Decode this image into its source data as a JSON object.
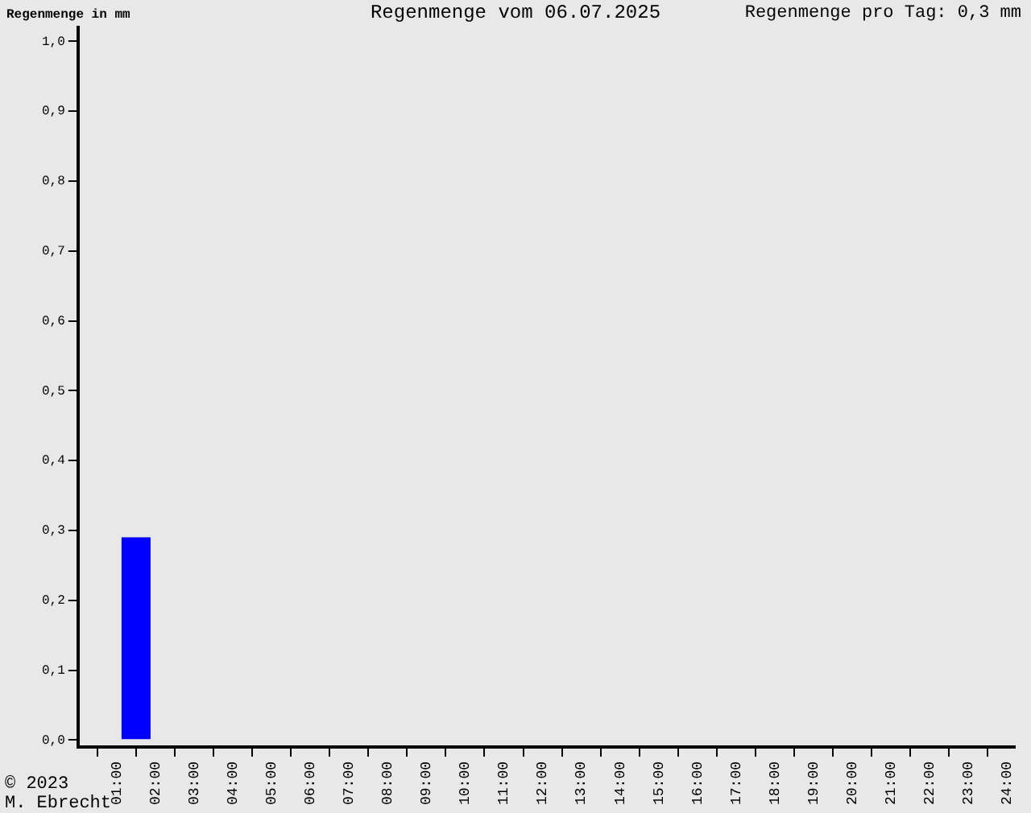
{
  "chart_data": {
    "type": "histogram",
    "title": "Regenmenge vom 06.07.2025",
    "ylabel": "Regenmenge in mm",
    "annotations": [
      "Regenmenge pro Tag: 0,3 mm",
      "© 2023",
      "M. Ebrecht"
    ],
    "bins": [
      0,
      1,
      2,
      3,
      4,
      5,
      6,
      7,
      8,
      9,
      10,
      11,
      12,
      13,
      14,
      15,
      16,
      17,
      18,
      19,
      20,
      21,
      22,
      23,
      24
    ],
    "values": [
      0,
      0.29,
      0,
      0,
      0,
      0,
      0,
      0,
      0,
      0,
      0,
      0,
      0,
      0,
      0,
      0,
      0,
      0,
      0,
      0,
      0,
      0,
      0,
      0
    ],
    "color": "#0000ff",
    "xlim": [
      0,
      24.2
    ],
    "xticks": [
      {
        "value": 1,
        "label": "01:00"
      },
      {
        "value": 2,
        "label": "02:00"
      },
      {
        "value": 3,
        "label": "03:00"
      },
      {
        "value": 4,
        "label": "04:00"
      },
      {
        "value": 5,
        "label": "05:00"
      },
      {
        "value": 6,
        "label": "06:00"
      },
      {
        "value": 7,
        "label": "07:00"
      },
      {
        "value": 8,
        "label": "08:00"
      },
      {
        "value": 9,
        "label": "09:00"
      },
      {
        "value": 10,
        "label": "10:00"
      },
      {
        "value": 11,
        "label": "11:00"
      },
      {
        "value": 12,
        "label": "12:00"
      },
      {
        "value": 13,
        "label": "13:00"
      },
      {
        "value": 14,
        "label": "14:00"
      },
      {
        "value": 15,
        "label": "15:00"
      },
      {
        "value": 16,
        "label": "16:00"
      },
      {
        "value": 17,
        "label": "17:00"
      },
      {
        "value": 18,
        "label": "18:00"
      },
      {
        "value": 19,
        "label": "19:00"
      },
      {
        "value": 20,
        "label": "20:00"
      },
      {
        "value": 21,
        "label": "21:00"
      },
      {
        "value": 22,
        "label": "22:00"
      },
      {
        "value": 23,
        "label": "23:00"
      },
      {
        "value": 24,
        "label": "24:00"
      }
    ],
    "ylim": [
      -0.01,
      1.02
    ],
    "yticks": [
      {
        "value": 0,
        "label": "0,0"
      },
      {
        "value": 0.1,
        "label": "0,1"
      },
      {
        "value": 0.2,
        "label": "0,2"
      },
      {
        "value": 0.3,
        "label": "0,3"
      },
      {
        "value": 0.4,
        "label": "0,4"
      },
      {
        "value": 0.5,
        "label": "0,5"
      },
      {
        "value": 0.6,
        "label": "0,6"
      },
      {
        "value": 0.7,
        "label": "0,7"
      },
      {
        "value": 0.8,
        "label": "0,8"
      },
      {
        "value": 0.9,
        "label": "0,9"
      },
      {
        "value": 1,
        "label": "1,0"
      }
    ],
    "grid": false,
    "legend": false
  }
}
